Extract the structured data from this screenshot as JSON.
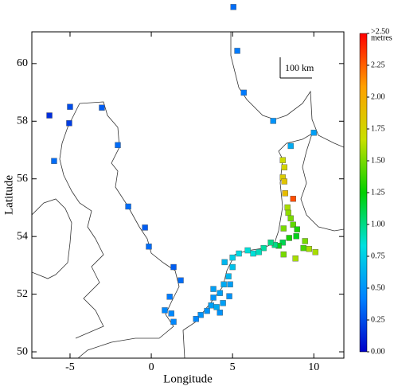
{
  "chart_data": {
    "type": "scatter",
    "x_label": "Longitude",
    "y_label": "Latitude",
    "scale_label": "100 km",
    "colorbar_unit": "metres",
    "x": [
      5.05,
      5.29,
      5.69,
      7.5,
      10.0,
      8.58,
      -6.27,
      -5.0,
      -5.05,
      -3.04,
      -5.98,
      -2.06,
      -1.42,
      -0.39,
      -0.15,
      1.37,
      1.81,
      1.13,
      0.83,
      1.23,
      1.37,
      8.09,
      8.19,
      8.09,
      8.19,
      8.24,
      8.73,
      8.38,
      8.43,
      8.58,
      8.73,
      8.14,
      8.97,
      8.92,
      8.48,
      8.09,
      7.84,
      7.6,
      7.35,
      9.46,
      9.71,
      10.1,
      9.36,
      8.14,
      8.87,
      6.91,
      6.62,
      6.27,
      5.93,
      5.39,
      5.0,
      4.51,
      5.0,
      4.75,
      4.46,
      4.22,
      3.82,
      3.68,
      3.43,
      3.04,
      2.75,
      4.02,
      4.41,
      4.8,
      4.85,
      4.22,
      3.82
    ],
    "y": [
      61.96,
      60.44,
      58.99,
      58.01,
      57.6,
      57.14,
      58.2,
      58.5,
      57.93,
      58.47,
      56.62,
      57.17,
      55.04,
      54.31,
      53.65,
      52.94,
      52.48,
      51.91,
      51.44,
      51.33,
      51.04,
      56.65,
      56.4,
      56.05,
      55.91,
      55.5,
      55.31,
      55.01,
      54.82,
      54.63,
      54.41,
      54.28,
      54.25,
      54.01,
      53.95,
      53.79,
      53.68,
      53.71,
      53.79,
      53.84,
      53.57,
      53.46,
      53.6,
      53.38,
      53.24,
      53.6,
      53.46,
      53.41,
      53.52,
      53.41,
      53.27,
      53.11,
      52.94,
      52.62,
      52.34,
      52.04,
      51.88,
      51.61,
      51.42,
      51.28,
      51.14,
      51.55,
      51.69,
      51.93,
      52.34,
      51.36,
      52.18
    ],
    "values": [
      0.35,
      0.4,
      0.4,
      0.5,
      0.55,
      0.6,
      0.15,
      0.25,
      0.2,
      0.3,
      0.35,
      0.35,
      0.35,
      0.3,
      0.35,
      0.3,
      0.35,
      0.4,
      0.45,
      0.45,
      0.45,
      1.7,
      1.75,
      1.8,
      1.85,
      1.9,
      2.3,
      1.6,
      1.55,
      1.5,
      1.45,
      1.5,
      1.3,
      1.2,
      1.3,
      1.1,
      1.2,
      1.0,
      1.0,
      1.5,
      1.6,
      1.6,
      1.4,
      1.5,
      1.6,
      0.95,
      0.9,
      0.85,
      0.85,
      0.8,
      0.75,
      0.65,
      0.7,
      0.65,
      0.6,
      0.55,
      0.5,
      0.55,
      0.5,
      0.5,
      0.45,
      0.6,
      0.55,
      0.5,
      0.55,
      0.5,
      0.55
    ],
    "xlim": [
      -7.35,
      11.85
    ],
    "ylim": [
      49.78,
      61.1
    ],
    "xticks": [
      -5,
      0,
      5,
      10
    ],
    "yticks": [
      50,
      52,
      54,
      56,
      58,
      60
    ],
    "clim": [
      0,
      2.5
    ],
    "cticks": [
      {
        "value": 0,
        "label": "0.00"
      },
      {
        "value": 0.25,
        "label": "0.25"
      },
      {
        "value": 0.5,
        "label": "0.50"
      },
      {
        "value": 0.75,
        "label": "0.75"
      },
      {
        "value": 1.0,
        "label": "1.00"
      },
      {
        "value": 1.25,
        "label": "1.25"
      },
      {
        "value": 1.5,
        "label": "1.50"
      },
      {
        "value": 1.75,
        "label": "1.75"
      },
      {
        "value": 2.0,
        "label": "2.00"
      },
      {
        "value": 2.25,
        "label": "2.25"
      },
      {
        "value": 2.5,
        "label": ">2.50"
      }
    ],
    "colorscale": [
      "#0000c8",
      "#0080ff",
      "#00e0e0",
      "#00d000",
      "#c8e000",
      "#ffa000",
      "#ff0000"
    ]
  }
}
